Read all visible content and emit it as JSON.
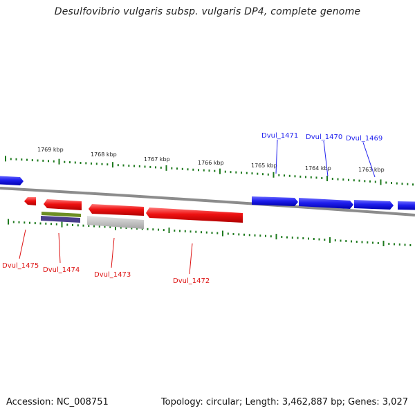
{
  "title": "Desulfovibrio vulgaris subsp. vulgaris DP4, complete genome",
  "footer": {
    "accession": "Accession: NC_008751",
    "summary": "Topology: circular; Length: 3,462,887 bp; Genes: 3,027"
  },
  "colors": {
    "forward_gene": "#1f1fee",
    "reverse_gene": "#ee1111",
    "tick": "#1e7a1e",
    "backbone": "#8c8c8c",
    "feature_green": "#6b8e23",
    "feature_purple": "#4a3f8c",
    "feature_gray": "#bdbdbd"
  },
  "scale": {
    "unit": "kbp",
    "labels": [
      "1769 kbp",
      "1768 kbp",
      "1767 kbp",
      "1766 kbp",
      "1765 kbp",
      "1764 kbp",
      "1763 kbp"
    ]
  },
  "genes_forward": [
    {
      "label": "",
      "strand": "forward",
      "span": "off-left"
    },
    {
      "label": "",
      "strand": "forward",
      "span": "a"
    },
    {
      "label": "",
      "strand": "forward",
      "span": "b"
    },
    {
      "label": "",
      "strand": "forward",
      "span": "c"
    },
    {
      "label": "",
      "strand": "forward",
      "span": "off-right"
    }
  ],
  "genes_reverse": [
    {
      "label": "",
      "strand": "reverse"
    },
    {
      "label": "",
      "strand": "reverse"
    },
    {
      "label": "",
      "strand": "reverse"
    },
    {
      "label": "",
      "strand": "reverse"
    }
  ],
  "gene_labels_forward": [
    "Dvul_1471",
    "Dvul_1470",
    "Dvul_1469"
  ],
  "gene_labels_reverse": [
    "Dvul_1475",
    "Dvul_1474",
    "Dvul_1473",
    "Dvul_1472"
  ],
  "other_features": [
    "green",
    "purple",
    "gray"
  ]
}
